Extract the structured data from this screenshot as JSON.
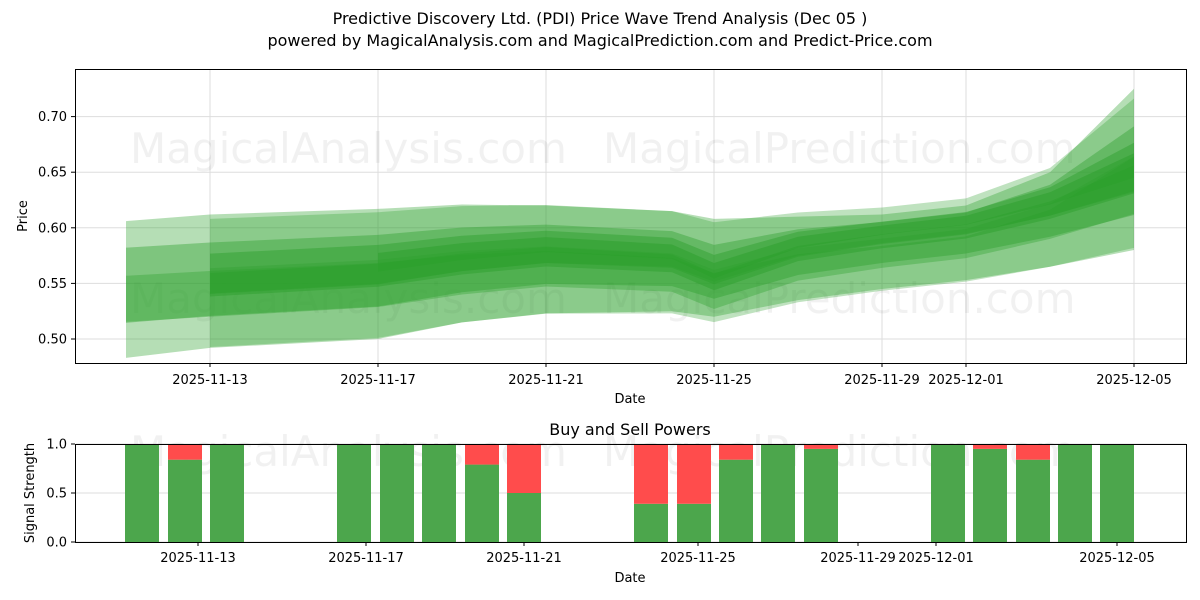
{
  "header": {
    "title": "Predictive Discovery Ltd. (PDI) Price Wave Trend Analysis (Dec 05 )",
    "subtitle": "powered by MagicalAnalysis.com and MagicalPrediction.com and Predict-Price.com"
  },
  "watermarks": [
    "MagicalAnalysis.com",
    "MagicalPrediction.com"
  ],
  "colors": {
    "band": "#2ca02c",
    "buy": "#4ca64c",
    "sell": "#ff4c4c",
    "grid": "#dddddd"
  },
  "chart_data": [
    {
      "type": "area",
      "title": "",
      "xlabel": "Date",
      "ylabel": "Price",
      "ylim": [
        0.478,
        0.743
      ],
      "grid": true,
      "x_ticks": [
        "2025-11-13",
        "2025-11-17",
        "2025-11-21",
        "2025-11-25",
        "2025-11-29",
        "2025-12-01",
        "2025-12-05"
      ],
      "y_ticks": [
        "0.50",
        "0.55",
        "0.60",
        "0.65",
        "0.70"
      ],
      "x": [
        "2025-11-11",
        "2025-11-13",
        "2025-11-17",
        "2025-11-19",
        "2025-11-21",
        "2025-11-24",
        "2025-11-25",
        "2025-11-27",
        "2025-11-29",
        "2025-12-01",
        "2025-12-03",
        "2025-12-05"
      ],
      "series": [
        {
          "name": "outer band upper",
          "values": [
            0.606,
            0.612,
            0.617,
            0.621,
            0.62,
            0.615,
            0.608,
            0.61,
            0.612,
            0.62,
            0.65,
            0.725
          ]
        },
        {
          "name": "central trend",
          "values": [
            0.553,
            0.556,
            0.565,
            0.575,
            0.582,
            0.575,
            0.556,
            0.585,
            0.597,
            0.606,
            0.625,
            0.65
          ]
        },
        {
          "name": "outer band lower",
          "values": [
            0.483,
            0.492,
            0.5,
            0.515,
            0.523,
            0.525,
            0.52,
            0.535,
            0.545,
            0.553,
            0.565,
            0.58
          ]
        }
      ]
    },
    {
      "type": "bar",
      "title": "Buy and Sell Powers",
      "xlabel": "Date",
      "ylabel": "Signal Strength",
      "ylim": [
        0.0,
        1.0
      ],
      "grid": true,
      "x_ticks": [
        "2025-11-13",
        "2025-11-17",
        "2025-11-21",
        "2025-11-25",
        "2025-11-29",
        "2025-12-01",
        "2025-12-05"
      ],
      "y_ticks": [
        "0.0",
        "0.5",
        "1.0"
      ],
      "categories": [
        "2025-11-11",
        "2025-11-12",
        "2025-11-13",
        "2025-11-16",
        "2025-11-17",
        "2025-11-18",
        "2025-11-19",
        "2025-11-20",
        "2025-11-23",
        "2025-11-24",
        "2025-11-25",
        "2025-11-26",
        "2025-11-27",
        "2025-11-30",
        "2025-12-01",
        "2025-12-02",
        "2025-12-03",
        "2025-12-04"
      ],
      "series": [
        {
          "name": "Buy",
          "values": [
            1.0,
            0.84,
            1.0,
            1.0,
            1.0,
            1.0,
            0.79,
            0.5,
            0.39,
            0.39,
            0.84,
            1.0,
            0.95,
            1.0,
            0.95,
            0.84,
            1.0,
            1.0
          ]
        },
        {
          "name": "Sell",
          "values": [
            0.0,
            0.16,
            0.0,
            0.0,
            0.0,
            0.0,
            0.21,
            0.5,
            0.61,
            0.61,
            0.16,
            0.0,
            0.05,
            0.0,
            0.05,
            0.16,
            0.0,
            0.0
          ]
        }
      ]
    }
  ]
}
